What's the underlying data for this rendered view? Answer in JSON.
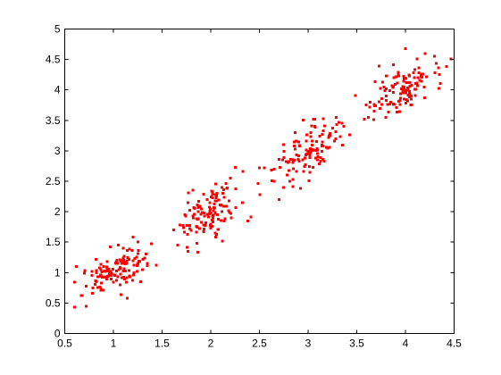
{
  "chart_data": {
    "type": "scatter",
    "title": "",
    "xlabel": "",
    "ylabel": "",
    "xlim": [
      0.5,
      4.5
    ],
    "ylim": [
      0,
      5
    ],
    "grid": false,
    "legend": "none",
    "marker_color": "#ff0000",
    "x_ticks": [
      "0.5",
      "1",
      "1.5",
      "2",
      "2.5",
      "3",
      "3.5",
      "4",
      "4.5"
    ],
    "y_ticks": [
      "0",
      "0.5",
      "1",
      "1.5",
      "2",
      "2.5",
      "3",
      "3.5",
      "4",
      "4.5",
      "5"
    ],
    "series": [
      {
        "clusters": [
          {
            "center": [
              1.0,
              1.0
            ],
            "count": 120,
            "spread": [
              0.15,
              0.18
            ],
            "correlation": 0.6
          },
          {
            "center": [
              2.0,
              2.0
            ],
            "count": 120,
            "spread": [
              0.17,
              0.25
            ],
            "correlation": 0.6
          },
          {
            "center": [
              3.0,
              3.0
            ],
            "count": 120,
            "spread": [
              0.17,
              0.25
            ],
            "correlation": 0.6
          },
          {
            "center": [
              4.0,
              4.0
            ],
            "count": 120,
            "spread": [
              0.17,
              0.2
            ],
            "correlation": 0.5
          }
        ],
        "points": [
          [
            0.6,
            0.43
          ],
          [
            0.62,
            1.1
          ],
          [
            0.68,
            0.62
          ],
          [
            0.72,
            0.45
          ],
          [
            0.78,
            0.95
          ],
          [
            0.82,
            1.22
          ],
          [
            1.1,
            1.4
          ],
          [
            1.2,
            1.58
          ],
          [
            1.25,
            1.5
          ],
          [
            1.35,
            1.15
          ],
          [
            1.28,
            0.85
          ],
          [
            1.62,
            1.7
          ],
          [
            1.66,
            1.45
          ],
          [
            2.2,
            2.55
          ],
          [
            2.25,
            2.73
          ],
          [
            2.38,
            1.85
          ],
          [
            2.5,
            2.72
          ],
          [
            2.55,
            2.72
          ],
          [
            2.65,
            2.5
          ],
          [
            2.7,
            2.2
          ],
          [
            2.92,
            2.38
          ],
          [
            3.35,
            3.45
          ],
          [
            3.58,
            3.52
          ],
          [
            3.62,
            3.55
          ],
          [
            3.68,
            3.65
          ],
          [
            4.0,
            4.68
          ],
          [
            4.2,
            4.6
          ],
          [
            4.3,
            4.55
          ],
          [
            4.35,
            4.25
          ],
          [
            3.8,
            3.55
          ]
        ]
      }
    ]
  }
}
